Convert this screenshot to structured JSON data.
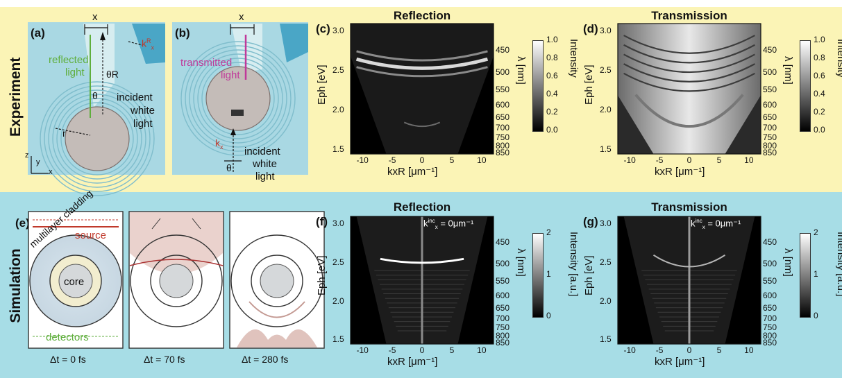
{
  "rows": {
    "experiment": "Experiment",
    "simulation": "Simulation"
  },
  "panel_a": {
    "label": "(a)",
    "x": "x",
    "reflected": "reflected",
    "light": "light",
    "incident": "incident",
    "white": "white",
    "light2": "light",
    "theta_r": "θR",
    "theta": "θ",
    "r": "r",
    "kx": "k",
    "kx_sup": "R",
    "kx_sub": "x",
    "axis_z": "z",
    "axis_y": "y",
    "axis_x": "x"
  },
  "panel_b": {
    "label": "(b)",
    "x": "x",
    "transmitted": "transmitted",
    "light": "light",
    "incident": "incident",
    "white": "white",
    "light2": "light",
    "theta": "θ",
    "kx": "k",
    "kx_sub": "x"
  },
  "panel_c": {
    "label": "(c)",
    "title": "Reflection"
  },
  "panel_d": {
    "label": "(d)",
    "title": "Transmission"
  },
  "panel_e": {
    "label": "(e)",
    "source": "source",
    "cladding": "multilayer cladding",
    "core": "core",
    "detectors": "detectors",
    "dt": [
      "Δt  = 0 fs",
      "Δt  = 70 fs",
      "Δt  = 280 fs"
    ]
  },
  "panel_f": {
    "label": "(f)",
    "title": "Reflection",
    "annotation": "k",
    "annotation_sup": "inc",
    "annotation_sub": "x",
    "annotation_val": " = 0μm⁻¹"
  },
  "panel_g": {
    "label": "(g)",
    "title": "Transmission",
    "annotation": "k",
    "annotation_sup": "inc",
    "annotation_sub": "x",
    "annotation_val": " = 0μm⁻¹"
  },
  "chart_data": [
    {
      "type": "heatmap",
      "panel": "(c)",
      "title": "Reflection",
      "xlabel": "kxR [μm⁻¹]",
      "ylabel": "Eph [eV]",
      "y2label": "λ [nm]",
      "xticks": [
        "-10",
        "-5",
        "0",
        "5",
        "10"
      ],
      "yticks": [
        "3.0",
        "2.5",
        "2.0",
        "1.5"
      ],
      "y2ticks": [
        "450",
        "500",
        "550",
        "600",
        "650",
        "700",
        "750",
        "800",
        "850"
      ],
      "colorbar": {
        "label": "Intensity",
        "ticks": [
          "1.0",
          "0.8",
          "0.6",
          "0.4",
          "0.2",
          "0.0"
        ]
      },
      "xlim": [
        -12,
        12
      ],
      "ylim": [
        1.45,
        3.1
      ]
    },
    {
      "type": "heatmap",
      "panel": "(d)",
      "title": "Transmission",
      "xlabel": "kxR [μm⁻¹]",
      "ylabel": "Eph [eV]",
      "y2label": "λ [nm]",
      "xticks": [
        "-10",
        "-5",
        "0",
        "5",
        "10"
      ],
      "yticks": [
        "3.0",
        "2.5",
        "2.0",
        "1.5"
      ],
      "y2ticks": [
        "450",
        "500",
        "550",
        "600",
        "650",
        "700",
        "750",
        "800",
        "850"
      ],
      "colorbar": {
        "label": "Intensity",
        "ticks": [
          "1.0",
          "0.8",
          "0.6",
          "0.4",
          "0.2",
          "0.0"
        ]
      },
      "xlim": [
        -12,
        12
      ],
      "ylim": [
        1.45,
        3.1
      ]
    },
    {
      "type": "heatmap",
      "panel": "(f)",
      "title": "Reflection",
      "xlabel": "kxR [μm⁻¹]",
      "ylabel": "Eph [eV]",
      "y2label": "λ [nm]",
      "xticks": [
        "-10",
        "-5",
        "0",
        "5",
        "10"
      ],
      "yticks": [
        "3.0",
        "2.5",
        "2.0",
        "1.5"
      ],
      "y2ticks": [
        "450",
        "500",
        "550",
        "600",
        "650",
        "700",
        "750",
        "800",
        "850"
      ],
      "colorbar": {
        "label": "Intensity [a.u.]",
        "ticks": [
          "2",
          "1",
          "0"
        ]
      },
      "xlim": [
        -12,
        12
      ],
      "ylim": [
        1.45,
        3.1
      ]
    },
    {
      "type": "heatmap",
      "panel": "(g)",
      "title": "Transmission",
      "xlabel": "kxR [μm⁻¹]",
      "ylabel": "Eph [eV]",
      "y2label": "λ [nm]",
      "xticks": [
        "-10",
        "-5",
        "0",
        "5",
        "10"
      ],
      "yticks": [
        "3.0",
        "2.5",
        "2.0",
        "1.5"
      ],
      "y2ticks": [
        "450",
        "500",
        "550",
        "600",
        "650",
        "700",
        "750",
        "800",
        "850"
      ],
      "colorbar": {
        "label": "Intensity [a.u.]",
        "ticks": [
          "2",
          "1",
          "0"
        ]
      },
      "xlim": [
        -12,
        12
      ],
      "ylim": [
        1.45,
        3.1
      ]
    }
  ],
  "colors": {
    "top_band": "#fbf4b6",
    "bottom_band": "#a7dde6",
    "panel_bg": "#a9d8e3",
    "reflected": "#5fae3c",
    "transmitted": "#c0399a",
    "source": "#c0392b"
  }
}
